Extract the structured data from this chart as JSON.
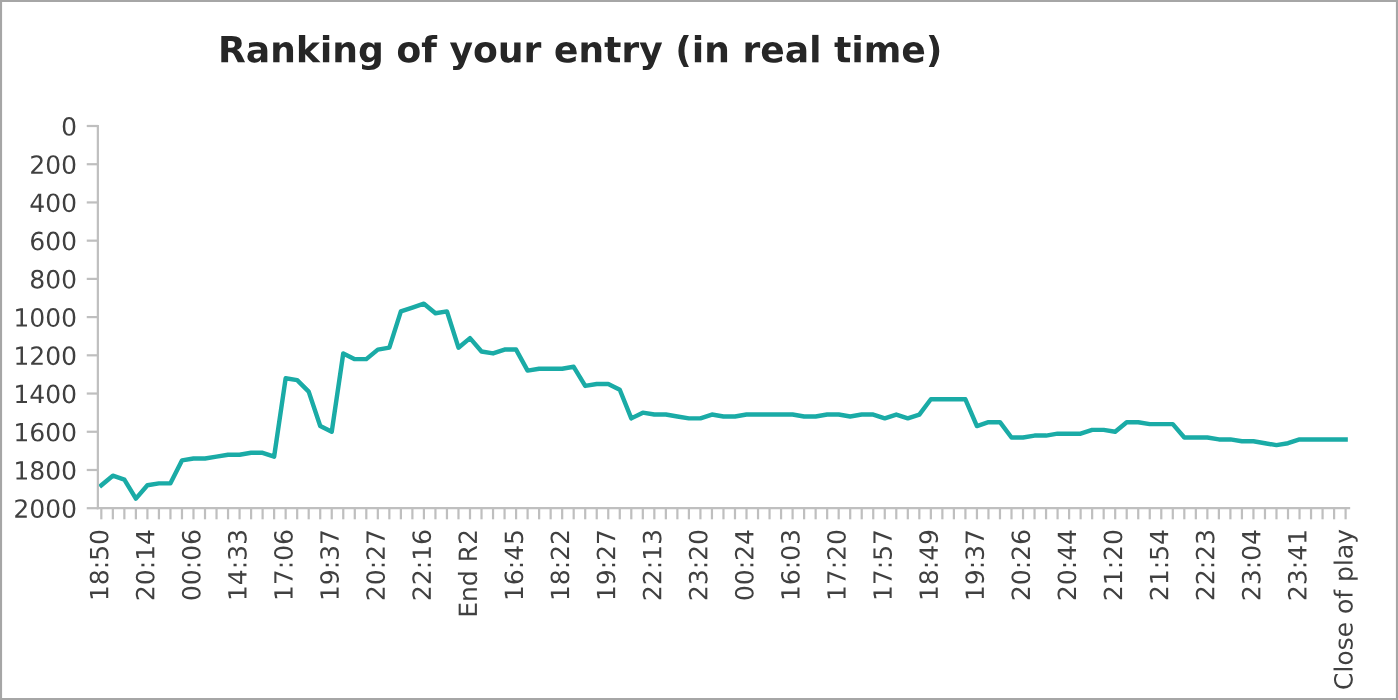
{
  "chart_data": {
    "type": "line",
    "title": "Ranking of your entry (in real time)",
    "categories": [
      "18:50",
      null,
      null,
      null,
      "20:14",
      null,
      null,
      null,
      "00:06",
      null,
      null,
      null,
      "14:33",
      null,
      null,
      null,
      "17:06",
      null,
      null,
      null,
      "19:37",
      null,
      null,
      null,
      "20:27",
      null,
      null,
      null,
      "22:16",
      null,
      null,
      null,
      "End R2",
      null,
      null,
      null,
      "16:45",
      null,
      null,
      null,
      "18:22",
      null,
      null,
      null,
      "19:27",
      null,
      null,
      null,
      "22:13",
      null,
      null,
      null,
      "23:20",
      null,
      null,
      null,
      "00:24",
      null,
      null,
      null,
      "16:03",
      null,
      null,
      null,
      "17:20",
      null,
      null,
      null,
      "17:57",
      null,
      null,
      null,
      "18:49",
      null,
      null,
      null,
      "19:37",
      null,
      null,
      null,
      "20:26",
      null,
      null,
      null,
      "20:44",
      null,
      null,
      null,
      "21:20",
      null,
      null,
      null,
      "21:54",
      null,
      null,
      null,
      "22:23",
      null,
      null,
      null,
      "23:04",
      null,
      null,
      null,
      "23:41",
      null,
      null,
      null,
      "Close of play"
    ],
    "series": [
      {
        "color": "#1aaba6",
        "values": [
          1880,
          1830,
          1850,
          1950,
          1880,
          1870,
          1870,
          1750,
          1740,
          1740,
          1730,
          1720,
          1720,
          1710,
          1710,
          1730,
          1320,
          1330,
          1390,
          1570,
          1600,
          1190,
          1220,
          1220,
          1170,
          1160,
          970,
          950,
          930,
          980,
          970,
          1160,
          1110,
          1180,
          1190,
          1170,
          1170,
          1280,
          1270,
          1270,
          1270,
          1260,
          1360,
          1350,
          1350,
          1380,
          1530,
          1500,
          1510,
          1510,
          1520,
          1530,
          1530,
          1510,
          1520,
          1520,
          1510,
          1510,
          1510,
          1510,
          1510,
          1520,
          1520,
          1510,
          1510,
          1520,
          1510,
          1510,
          1530,
          1510,
          1530,
          1510,
          1430,
          1430,
          1430,
          1430,
          1570,
          1550,
          1550,
          1630,
          1630,
          1620,
          1620,
          1610,
          1610,
          1610,
          1590,
          1590,
          1600,
          1550,
          1550,
          1560,
          1560,
          1560,
          1630,
          1630,
          1630,
          1640,
          1640,
          1650,
          1650,
          1660,
          1670,
          1660,
          1640,
          1640,
          1640,
          1640,
          1640
        ]
      }
    ],
    "ylim": [
      2000,
      0
    ],
    "yticks": [
      0,
      200,
      400,
      600,
      800,
      1000,
      1200,
      1400,
      1600,
      1800,
      2000
    ],
    "grid": false,
    "legend": false
  }
}
